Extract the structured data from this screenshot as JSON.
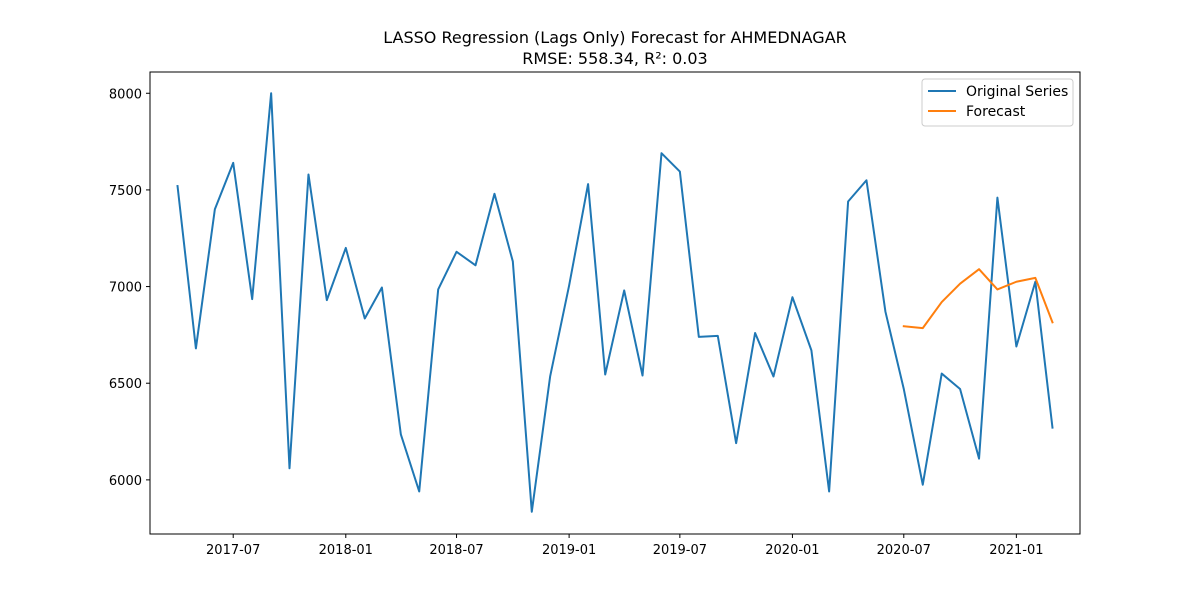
{
  "chart_data": {
    "type": "line",
    "title": "LASSO Regression (Lags Only) Forecast for AHMEDNAGAR",
    "subtitle": "RMSE: 558.34, R²: 0.03",
    "xlabel": "",
    "ylabel": "",
    "xlim": [
      "2017-02-15",
      "2021-04-15"
    ],
    "ylim": [
      5720,
      8110
    ],
    "x_ticks": [
      "2017-07",
      "2018-01",
      "2018-07",
      "2019-01",
      "2019-07",
      "2020-01",
      "2020-07",
      "2021-01"
    ],
    "y_ticks": [
      6000,
      6500,
      7000,
      7500,
      8000
    ],
    "grid": false,
    "legend": "upper right",
    "series": [
      {
        "name": "Original Series",
        "color": "#1f77b4",
        "x": [
          "2017-04-01",
          "2017-05-01",
          "2017-06-01",
          "2017-07-01",
          "2017-08-01",
          "2017-09-01",
          "2017-10-01",
          "2017-11-01",
          "2017-12-01",
          "2018-01-01",
          "2018-02-01",
          "2018-03-01",
          "2018-04-01",
          "2018-05-01",
          "2018-06-01",
          "2018-07-01",
          "2018-08-01",
          "2018-09-01",
          "2018-10-01",
          "2018-11-01",
          "2018-12-01",
          "2019-01-01",
          "2019-02-01",
          "2019-03-01",
          "2019-04-01",
          "2019-05-01",
          "2019-06-01",
          "2019-07-01",
          "2019-08-01",
          "2019-09-01",
          "2019-10-01",
          "2019-11-01",
          "2019-12-01",
          "2020-01-01",
          "2020-02-01",
          "2020-03-01",
          "2020-04-01",
          "2020-05-01",
          "2020-06-01",
          "2020-07-01",
          "2020-08-01",
          "2020-09-01",
          "2020-10-01",
          "2020-11-01",
          "2020-12-01",
          "2021-01-01",
          "2021-02-01",
          "2021-03-01"
        ],
        "y": [
          7520,
          6680,
          7400,
          7640,
          6935,
          8000,
          6060,
          7580,
          6930,
          7200,
          6835,
          6995,
          6235,
          5940,
          6985,
          7180,
          7110,
          7480,
          7130,
          5835,
          6535,
          7005,
          7530,
          6545,
          6980,
          6540,
          7690,
          7595,
          6740,
          6745,
          6190,
          6760,
          6535,
          6945,
          6670,
          5940,
          7440,
          7550,
          6870,
          6470,
          5975,
          6550,
          6470,
          6110,
          7460,
          6690,
          7025,
          6270
        ]
      },
      {
        "name": "Forecast",
        "color": "#ff7f0e",
        "x": [
          "2020-07-01",
          "2020-08-01",
          "2020-09-01",
          "2020-10-01",
          "2020-11-01",
          "2020-12-01",
          "2021-01-01",
          "2021-02-01",
          "2021-03-01"
        ],
        "y": [
          6795,
          6785,
          6920,
          7015,
          7090,
          6985,
          7025,
          7045,
          6815
        ]
      }
    ]
  }
}
